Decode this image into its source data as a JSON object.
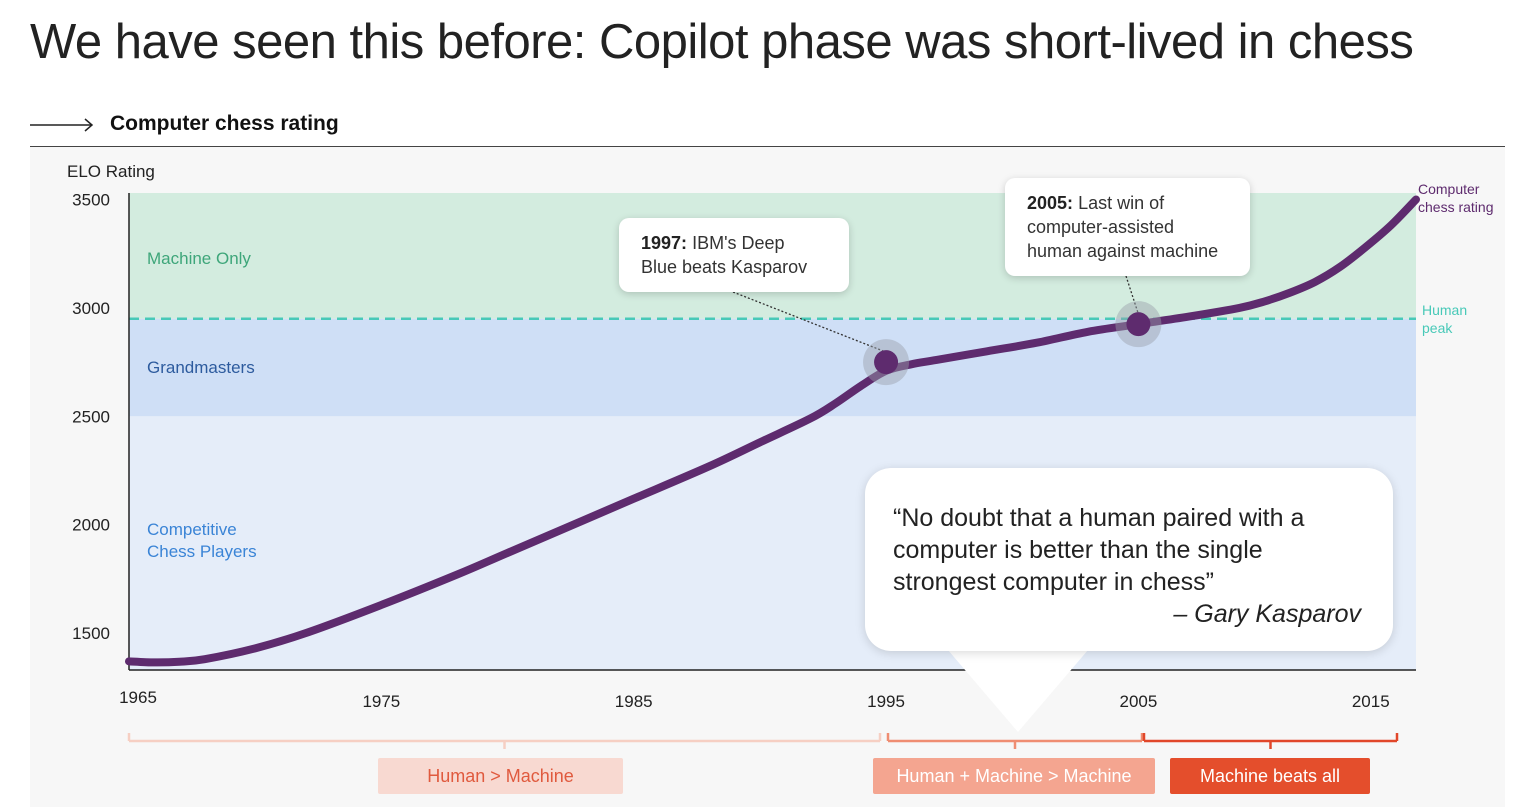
{
  "title": "We have seen this before: Copilot phase was short-lived in chess",
  "section": {
    "label": "Computer chess rating"
  },
  "colors": {
    "line": "#5e2b6e",
    "machine_band": "#d3ecdf",
    "grandmaster_band": "#cfdff6",
    "competitive_band": "#e5edf9",
    "human_peak": "#48c9b8",
    "machine_label": "#3ea67a",
    "grandmaster_label": "#2d5b9e",
    "competitive_label": "#3a84d6"
  },
  "chart_data": {
    "type": "line",
    "ylabel": "ELO Rating",
    "xlim": [
      1965,
      2016
    ],
    "ylim": [
      1330,
      3530
    ],
    "x_ticks": [
      "1965",
      "1975",
      "1985",
      "1995",
      "2005",
      "2015"
    ],
    "y_ticks": [
      "3500",
      "3000",
      "2500",
      "2000",
      "1500"
    ],
    "bands": [
      {
        "label": "Machine Only",
        "from": 2950,
        "to": 3530
      },
      {
        "label": "Grandmasters",
        "from": 2500,
        "to": 2950
      },
      {
        "label": "Competitive Chess Players",
        "line1": "Competitive",
        "line2": "Chess Players",
        "from": 1330,
        "to": 2500
      }
    ],
    "reference_line": {
      "label_line1": "Human",
      "label_line2": "peak",
      "value": 2950
    },
    "series": [
      {
        "label_line1": "Computer",
        "label_line2": "chess rating",
        "x": [
          1965,
          1966,
          1967,
          1968,
          1970,
          1972,
          1975,
          1978,
          1980,
          1983,
          1985,
          1988,
          1990,
          1992,
          1993,
          1994,
          1995,
          1996,
          1997,
          1999,
          2001,
          2003,
          2005,
          2007,
          2009,
          2010,
          2011,
          2012,
          2013,
          2014,
          2015,
          2016
        ],
        "y": [
          1370,
          1365,
          1368,
          1380,
          1430,
          1500,
          1630,
          1770,
          1870,
          2020,
          2120,
          2270,
          2380,
          2490,
          2560,
          2640,
          2710,
          2740,
          2760,
          2800,
          2840,
          2890,
          2925,
          2960,
          3000,
          3030,
          3070,
          3120,
          3190,
          3280,
          3380,
          3500
        ]
      }
    ],
    "markers": [
      {
        "year": 1995,
        "value": 2750,
        "bold": "1997:",
        "text_line1": "IBM's Deep",
        "text_line2": "Blue beats Kasparov"
      },
      {
        "year": 2005,
        "value": 2925,
        "bold": "2005:",
        "text_line1": "Last win of",
        "text_line2": "computer-assisted",
        "text_line3": "human against machine"
      }
    ]
  },
  "quote": {
    "line1": "“No doubt that a human paired with a",
    "line2": "computer is better than the single",
    "line3": "strongest computer in chess”",
    "author": "– Gary Kasparov"
  },
  "phases": [
    {
      "label": "Human > Machine",
      "bg": "#f8d9d1",
      "fg": "#e05a3e"
    },
    {
      "label": "Human + Machine > Machine",
      "bg": "#f4a590",
      "fg": "#ffffff"
    },
    {
      "label": "Machine beats all",
      "bg": "#e44e2c",
      "fg": "#ffffff"
    }
  ]
}
